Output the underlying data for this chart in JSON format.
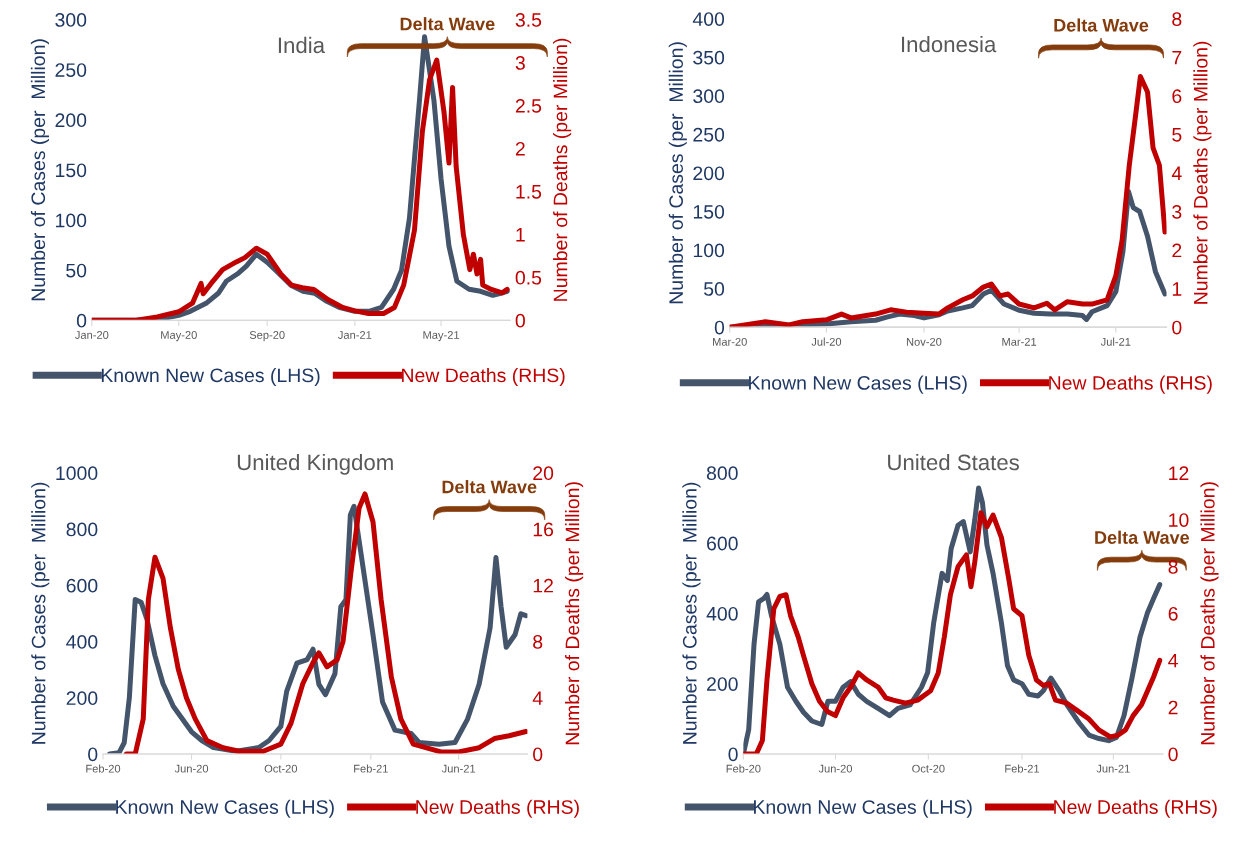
{
  "chart_data": [
    {
      "type": "line",
      "title": "India",
      "ylabel": "Number of Cases (per  Million)",
      "y2label": "Number of Deaths (per Million)",
      "xlim": [
        "2020-01-01",
        "2021-08-05"
      ],
      "xticks": [
        {
          "value": "2020-01-01",
          "label": "Jan-20"
        },
        {
          "value": "2020-05-01",
          "label": "May-20"
        },
        {
          "value": "2020-09-01",
          "label": "Sep-20"
        },
        {
          "value": "2021-01-01",
          "label": "Jan-21"
        },
        {
          "value": "2021-05-01",
          "label": "May-21"
        }
      ],
      "ylim": [
        0,
        300
      ],
      "yticks": [
        0,
        50,
        100,
        150,
        200,
        250,
        300
      ],
      "y2lim": [
        0,
        3.5
      ],
      "y2ticks": [
        0,
        0.5,
        1,
        1.5,
        2,
        2.5,
        3,
        3.5
      ],
      "legend": "bottom",
      "grid": false,
      "line_style": "solid",
      "marker": "none",
      "annotations": [
        "Delta Wave"
      ],
      "series": [
        {
          "name": "Known New Cases (LHS)",
          "color": "#44546a",
          "x": [
            "2020-01-01",
            "2020-03-01",
            "2020-04-03",
            "2020-05-01",
            "2020-05-17",
            "2020-06-08",
            "2020-06-25",
            "2020-07-06",
            "2020-07-23",
            "2020-08-03",
            "2020-08-17",
            "2020-09-01",
            "2020-09-17",
            "2020-10-04",
            "2020-10-21",
            "2020-11-06",
            "2020-11-23",
            "2020-12-10",
            "2021-01-01",
            "2021-01-21",
            "2021-02-07",
            "2021-02-24",
            "2021-03-07",
            "2021-03-18",
            "2021-04-01",
            "2021-04-08",
            "2021-04-21",
            "2021-05-01",
            "2021-05-12",
            "2021-05-23",
            "2021-06-09",
            "2021-06-25",
            "2021-07-12",
            "2021-07-23",
            "2021-08-01"
          ],
          "values": [
            0,
            0,
            1,
            5,
            9,
            17,
            27,
            39,
            47,
            54,
            66,
            58,
            47,
            35,
            29,
            27,
            19,
            13,
            9,
            9,
            13,
            31,
            50,
            102,
            220,
            283,
            220,
            141,
            74,
            39,
            31,
            29,
            25,
            27,
            29
          ]
        },
        {
          "name": "New Deaths (RHS)",
          "color": "#c00000",
          "axis": "y2",
          "x": [
            "2020-01-01",
            "2020-03-01",
            "2020-04-01",
            "2020-05-01",
            "2020-05-20",
            "2020-06-01",
            "2020-06-04",
            "2020-06-15",
            "2020-07-01",
            "2020-07-20",
            "2020-08-01",
            "2020-08-17",
            "2020-09-01",
            "2020-09-20",
            "2020-10-05",
            "2020-10-20",
            "2020-11-05",
            "2020-11-25",
            "2020-12-15",
            "2021-01-01",
            "2021-01-20",
            "2021-02-10",
            "2021-02-25",
            "2021-03-10",
            "2021-03-25",
            "2021-04-05",
            "2021-04-15",
            "2021-04-25",
            "2021-05-05",
            "2021-05-12",
            "2021-05-17",
            "2021-05-22",
            "2021-06-01",
            "2021-06-10",
            "2021-06-15",
            "2021-06-20",
            "2021-06-25",
            "2021-06-28",
            "2021-07-10",
            "2021-07-25",
            "2021-08-01"
          ],
          "values": [
            0,
            0,
            0.04,
            0.1,
            0.2,
            0.43,
            0.31,
            0.43,
            0.59,
            0.68,
            0.73,
            0.84,
            0.77,
            0.54,
            0.41,
            0.38,
            0.36,
            0.24,
            0.15,
            0.11,
            0.08,
            0.08,
            0.15,
            0.41,
            1.05,
            2.2,
            2.8,
            3.03,
            2.43,
            1.83,
            2.71,
            1.79,
            1.0,
            0.59,
            0.77,
            0.54,
            0.71,
            0.41,
            0.36,
            0.32,
            0.36
          ]
        }
      ]
    },
    {
      "type": "line",
      "title": "Indonesia",
      "ylabel": "Number of Cases (per  Million)",
      "y2label": "Number of Deaths (per Million)",
      "xlim": [
        "2020-03-01",
        "2021-09-03"
      ],
      "xticks": [
        {
          "value": "2020-03-01",
          "label": "Mar-20"
        },
        {
          "value": "2020-07-01",
          "label": "Jul-20"
        },
        {
          "value": "2020-11-01",
          "label": "Nov-20"
        },
        {
          "value": "2021-03-01",
          "label": "Mar-21"
        },
        {
          "value": "2021-07-01",
          "label": "Jul-21"
        }
      ],
      "ylim": [
        0,
        400
      ],
      "yticks": [
        0,
        50,
        100,
        150,
        200,
        250,
        300,
        350,
        400
      ],
      "y2lim": [
        0,
        8
      ],
      "y2ticks": [
        0,
        1,
        2,
        3,
        4,
        5,
        6,
        7,
        8
      ],
      "legend": "bottom",
      "grid": false,
      "line_style": "solid",
      "marker": "none",
      "annotations": [
        "Delta Wave"
      ],
      "series": [
        {
          "name": "Known New Cases (LHS)",
          "color": "#44546a",
          "x": [
            "2020-03-01",
            "2020-04-01",
            "2020-05-01",
            "2020-06-01",
            "2020-07-01",
            "2020-08-01",
            "2020-09-01",
            "2020-09-15",
            "2020-10-01",
            "2020-10-20",
            "2020-11-01",
            "2020-11-20",
            "2020-12-01",
            "2020-12-20",
            "2021-01-01",
            "2021-01-15",
            "2021-01-25",
            "2021-02-10",
            "2021-03-01",
            "2021-03-20",
            "2021-04-10",
            "2021-05-01",
            "2021-05-20",
            "2021-05-25",
            "2021-06-01",
            "2021-06-20",
            "2021-07-01",
            "2021-07-10",
            "2021-07-17",
            "2021-07-23",
            "2021-07-31",
            "2021-08-10",
            "2021-08-20",
            "2021-09-01"
          ],
          "values": [
            0,
            0,
            2,
            3,
            4,
            7,
            9,
            13,
            17,
            15,
            12,
            16,
            21,
            25,
            28,
            43,
            48,
            30,
            22,
            18,
            17,
            17,
            15,
            10,
            20,
            28,
            46,
            98,
            176,
            155,
            150,
            118,
            72,
            43
          ]
        },
        {
          "name": "New Deaths (RHS)",
          "color": "#c00000",
          "axis": "y2",
          "x": [
            "2020-03-01",
            "2020-04-15",
            "2020-05-15",
            "2020-06-01",
            "2020-07-01",
            "2020-07-20",
            "2020-08-01",
            "2020-09-01",
            "2020-09-20",
            "2020-10-10",
            "2020-11-01",
            "2020-11-20",
            "2020-12-01",
            "2020-12-20",
            "2021-01-01",
            "2021-01-15",
            "2021-01-25",
            "2021-02-05",
            "2021-02-15",
            "2021-03-01",
            "2021-03-20",
            "2021-04-05",
            "2021-04-15",
            "2021-05-01",
            "2021-05-20",
            "2021-06-01",
            "2021-06-20",
            "2021-07-01",
            "2021-07-09",
            "2021-07-18",
            "2021-07-26",
            "2021-08-01",
            "2021-08-10",
            "2021-08-17",
            "2021-08-25",
            "2021-09-01"
          ],
          "values": [
            0,
            0.14,
            0.06,
            0.14,
            0.19,
            0.34,
            0.24,
            0.34,
            0.45,
            0.39,
            0.36,
            0.34,
            0.5,
            0.71,
            0.81,
            1.04,
            1.12,
            0.81,
            0.86,
            0.6,
            0.5,
            0.62,
            0.45,
            0.66,
            0.6,
            0.6,
            0.71,
            1.33,
            2.26,
            4.2,
            5.5,
            6.5,
            6.1,
            4.65,
            4.2,
            2.47
          ]
        }
      ]
    },
    {
      "type": "line",
      "title": "United Kingdom",
      "ylabel": "Number of Cases (per  Million)",
      "y2label": "Number of Deaths (per Million)",
      "xlim": [
        "2020-02-01",
        "2021-09-03"
      ],
      "xticks": [
        {
          "value": "2020-02-01",
          "label": "Feb-20"
        },
        {
          "value": "2020-06-01",
          "label": "Jun-20"
        },
        {
          "value": "2020-10-01",
          "label": "Oct-20"
        },
        {
          "value": "2021-02-01",
          "label": "Feb-21"
        },
        {
          "value": "2021-06-01",
          "label": "Jun-21"
        }
      ],
      "ylim": [
        0,
        1000
      ],
      "yticks": [
        0,
        200,
        400,
        600,
        800,
        1000
      ],
      "y2lim": [
        0,
        20
      ],
      "y2ticks": [
        0,
        4,
        8,
        12,
        16,
        20
      ],
      "legend": "bottom",
      "grid": false,
      "line_style": "solid",
      "marker": "none",
      "annotations": [
        "Delta Wave"
      ],
      "series": [
        {
          "name": "Known New Cases (LHS)",
          "color": "#44546a",
          "x": [
            "2020-02-10",
            "2020-02-23",
            "2020-03-01",
            "2020-03-08",
            "2020-03-16",
            "2020-03-24",
            "2020-04-01",
            "2020-04-12",
            "2020-04-23",
            "2020-05-07",
            "2020-06-01",
            "2020-06-15",
            "2020-07-01",
            "2020-08-01",
            "2020-09-01",
            "2020-09-15",
            "2020-10-01",
            "2020-10-09",
            "2020-10-23",
            "2020-11-06",
            "2020-11-14",
            "2020-11-22",
            "2020-12-01",
            "2020-12-14",
            "2020-12-22",
            "2020-12-29",
            "2021-01-04",
            "2021-01-09",
            "2021-02-04",
            "2021-02-17",
            "2021-03-06",
            "2021-03-28",
            "2021-04-08",
            "2021-05-05",
            "2021-05-27",
            "2021-06-13",
            "2021-06-29",
            "2021-07-14",
            "2021-07-22",
            "2021-07-29",
            "2021-08-05",
            "2021-08-17",
            "2021-08-25",
            "2021-09-01"
          ],
          "values": [
            0,
            5,
            40,
            200,
            550,
            540,
            480,
            350,
            250,
            170,
            79,
            48,
            23,
            10,
            23,
            48,
            98,
            223,
            323,
            336,
            373,
            248,
            211,
            286,
            524,
            549,
            850,
            881,
            424,
            185,
            85,
            73,
            41,
            35,
            41,
            123,
            248,
            449,
            699,
            524,
            380,
            424,
            499,
            492
          ]
        },
        {
          "name": "New Deaths (RHS)",
          "color": "#c00000",
          "axis": "y2",
          "x": [
            "2020-03-04",
            "2020-03-16",
            "2020-03-27",
            "2020-04-03",
            "2020-04-12",
            "2020-04-23",
            "2020-05-03",
            "2020-05-14",
            "2020-05-25",
            "2020-06-06",
            "2020-06-22",
            "2020-07-14",
            "2020-08-05",
            "2020-09-07",
            "2020-10-01",
            "2020-10-15",
            "2020-10-31",
            "2020-11-14",
            "2020-11-22",
            "2020-12-03",
            "2020-12-17",
            "2020-12-25",
            "2021-01-05",
            "2021-01-16",
            "2021-01-24",
            "2021-02-04",
            "2021-02-15",
            "2021-03-01",
            "2021-03-14",
            "2021-03-31",
            "2021-04-17",
            "2021-05-08",
            "2021-06-01",
            "2021-06-29",
            "2021-07-20",
            "2021-08-09",
            "2021-09-01"
          ],
          "values": [
            0,
            0,
            2.5,
            11,
            14,
            12.5,
            9,
            6,
            4,
            2.5,
            0.95,
            0.45,
            0.2,
            0.2,
            0.7,
            2.2,
            5,
            6.5,
            7.2,
            6.2,
            6.7,
            8,
            13,
            17.5,
            18.5,
            16.5,
            11,
            5.5,
            2.5,
            0.7,
            0.45,
            0.15,
            0.15,
            0.45,
            1.1,
            1.3,
            1.6
          ]
        }
      ]
    },
    {
      "type": "line",
      "title": "United States",
      "ylabel": "Number of Cases (per  Million)",
      "y2label": "Number of Deaths (per Million)",
      "xlim": [
        "2020-02-01",
        "2021-08-05"
      ],
      "xticks": [
        {
          "value": "2020-02-01",
          "label": "Feb-20"
        },
        {
          "value": "2020-06-01",
          "label": "Jun-20"
        },
        {
          "value": "2020-10-01",
          "label": "Oct-20"
        },
        {
          "value": "2021-02-01",
          "label": "Feb-21"
        },
        {
          "value": "2021-06-01",
          "label": "Jun-21"
        }
      ],
      "ylim": [
        0,
        800
      ],
      "yticks": [
        0,
        200,
        400,
        600,
        800
      ],
      "y2lim": [
        0,
        12
      ],
      "y2ticks": [
        0,
        2,
        4,
        6,
        8,
        10,
        12
      ],
      "legend": "bottom",
      "grid": false,
      "line_style": "solid",
      "marker": "none",
      "annotations": [
        "Delta Wave"
      ],
      "series": [
        {
          "name": "Known New Cases (LHS)",
          "color": "#44546a",
          "x": [
            "2020-02-01",
            "2020-02-08",
            "2020-02-15",
            "2020-02-21",
            "2020-02-28",
            "2020-03-03",
            "2020-03-09",
            "2020-03-20",
            "2020-03-30",
            "2020-04-10",
            "2020-04-20",
            "2020-05-01",
            "2020-05-14",
            "2020-05-22",
            "2020-06-01",
            "2020-06-11",
            "2020-06-21",
            "2020-07-01",
            "2020-07-12",
            "2020-07-27",
            "2020-08-11",
            "2020-08-22",
            "2020-09-07",
            "2020-09-22",
            "2020-09-30",
            "2020-10-08",
            "2020-10-19",
            "2020-10-26",
            "2020-10-31",
            "2020-11-09",
            "2020-11-16",
            "2020-11-25",
            "2020-12-01",
            "2020-12-06",
            "2020-12-11",
            "2020-12-17",
            "2020-12-25",
            "2021-01-05",
            "2021-01-13",
            "2021-01-21",
            "2021-02-01",
            "2021-02-10",
            "2021-02-22",
            "2021-03-01",
            "2021-03-11",
            "2021-03-22",
            "2021-04-01",
            "2021-04-17",
            "2021-04-30",
            "2021-05-13",
            "2021-05-26",
            "2021-06-05",
            "2021-06-15",
            "2021-06-25",
            "2021-07-06",
            "2021-07-16",
            "2021-07-24",
            "2021-08-01"
          ],
          "values": [
            0,
            69,
            312,
            433,
            443,
            454,
            393,
            312,
            190,
            150,
            119,
            94,
            84,
            150,
            150,
            190,
            206,
            170,
            150,
            130,
            109,
            130,
            140,
            190,
            231,
            373,
            514,
            494,
            585,
            651,
            661,
            575,
            666,
            757,
            716,
            595,
            514,
            373,
            251,
            211,
            200,
            170,
            165,
            180,
            216,
            180,
            140,
            89,
            54,
            44,
            38,
            47,
            109,
            211,
            332,
            403,
            443,
            482
          ]
        },
        {
          "name": "New Deaths (RHS)",
          "color": "#c00000",
          "axis": "y2",
          "x": [
            "2020-02-01",
            "2020-02-18",
            "2020-02-26",
            "2020-03-03",
            "2020-03-12",
            "2020-03-20",
            "2020-03-28",
            "2020-04-03",
            "2020-04-13",
            "2020-04-20",
            "2020-05-01",
            "2020-05-11",
            "2020-05-22",
            "2020-06-01",
            "2020-06-11",
            "2020-06-21",
            "2020-07-01",
            "2020-07-12",
            "2020-07-27",
            "2020-08-06",
            "2020-08-16",
            "2020-09-01",
            "2020-09-17",
            "2020-10-04",
            "2020-10-14",
            "2020-10-22",
            "2020-10-30",
            "2020-11-09",
            "2020-11-20",
            "2020-11-26",
            "2020-12-01",
            "2020-12-09",
            "2020-12-17",
            "2020-12-25",
            "2021-01-05",
            "2021-01-15",
            "2021-01-21",
            "2021-02-01",
            "2021-02-10",
            "2021-02-20",
            "2021-03-01",
            "2021-03-09",
            "2021-03-17",
            "2021-04-01",
            "2021-04-17",
            "2021-04-30",
            "2021-05-13",
            "2021-05-28",
            "2021-06-07",
            "2021-06-17",
            "2021-06-27",
            "2021-07-08",
            "2021-07-16",
            "2021-07-24",
            "2021-08-01"
          ],
          "values": [
            0,
            0,
            0.58,
            3.16,
            6.2,
            6.73,
            6.8,
            5.9,
            5.0,
            4.2,
            3.0,
            2.25,
            1.8,
            1.64,
            2.4,
            2.86,
            3.46,
            3.16,
            2.86,
            2.4,
            2.3,
            2.17,
            2.3,
            2.7,
            3.46,
            5.0,
            6.8,
            8.0,
            8.5,
            7.14,
            8.2,
            10.3,
            9.7,
            10.2,
            9.24,
            7.4,
            6.2,
            5.9,
            4.2,
            3.16,
            2.93,
            3.0,
            2.3,
            2.17,
            1.8,
            1.49,
            1.03,
            0.73,
            0.8,
            1.03,
            1.64,
            2.1,
            2.7,
            3.3,
            4.0
          ]
        }
      ]
    }
  ]
}
